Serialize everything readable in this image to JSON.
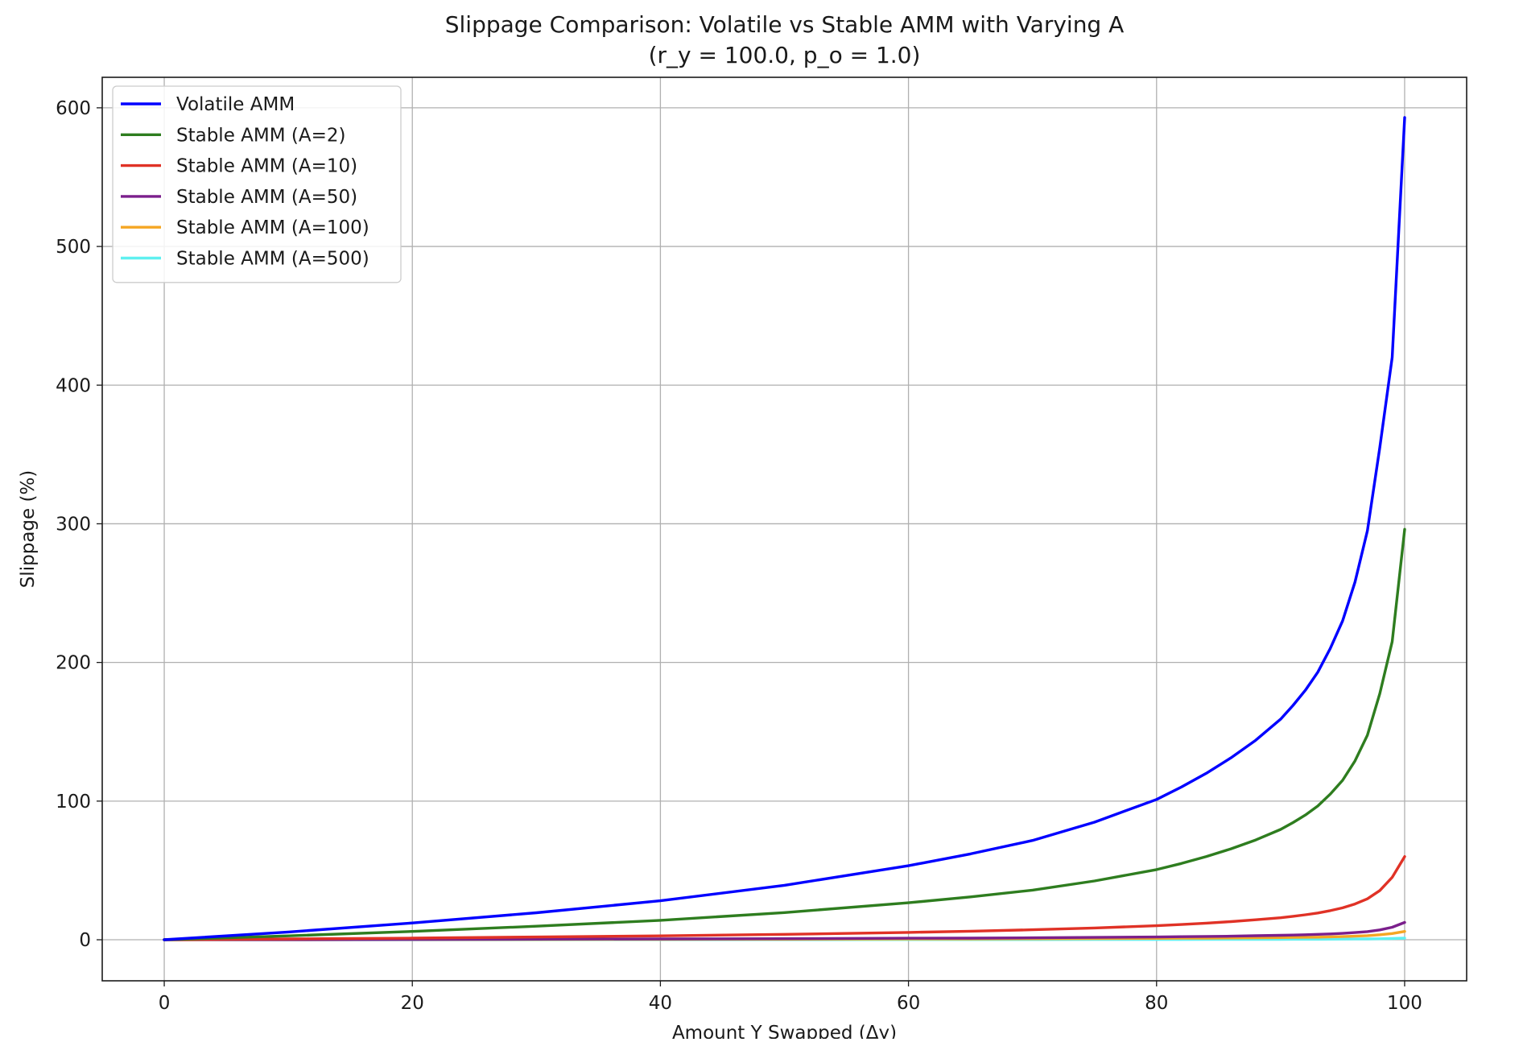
{
  "chart_data": {
    "type": "line",
    "title": "Slippage Comparison: Volatile vs Stable AMM with Varying A",
    "subtitle": "(r_y = 100.0, p_o = 1.0)",
    "xlabel": "Amount Y Swapped (Δy)",
    "ylabel": "Slippage (%)",
    "xlim": [
      -5,
      105
    ],
    "ylim": [
      -29.6,
      622
    ],
    "xticks": [
      0,
      20,
      40,
      60,
      80,
      100
    ],
    "yticks": [
      0,
      100,
      200,
      300,
      400,
      500,
      600
    ],
    "grid": true,
    "legend_position": "top-left",
    "x": [
      0,
      10,
      20,
      30,
      40,
      50,
      60,
      65,
      70,
      75,
      80,
      82,
      84,
      86,
      88,
      90,
      91,
      92,
      93,
      94,
      95,
      96,
      97,
      98,
      99,
      100
    ],
    "series": [
      {
        "name": "Volatile AMM",
        "color": "#0000ff",
        "values": [
          0,
          5.6,
          12.1,
          19.5,
          28.1,
          39.3,
          53.4,
          61.9,
          71.6,
          84.8,
          101.2,
          110.1,
          120.0,
          131.2,
          143.9,
          159.1,
          169.0,
          180.0,
          193.0,
          210.0,
          230.0,
          258.0,
          295.0,
          355.0,
          420.0,
          593.0
        ]
      },
      {
        "name": "Stable AMM (A=2)",
        "color": "#2e7d1f",
        "values": [
          0,
          2.8,
          6.0,
          9.8,
          14.0,
          19.6,
          26.7,
          30.9,
          35.8,
          42.4,
          50.6,
          55.0,
          60.0,
          65.6,
          72.0,
          79.6,
          84.5,
          90.0,
          96.5,
          105.0,
          115.0,
          129.0,
          147.5,
          177.5,
          215.0,
          296.0
        ]
      },
      {
        "name": "Stable AMM (A=10)",
        "color": "#e03226",
        "values": [
          0,
          0.6,
          1.2,
          2.0,
          2.8,
          3.9,
          5.3,
          6.2,
          7.2,
          8.5,
          10.1,
          11.0,
          12.0,
          13.1,
          14.4,
          15.9,
          16.9,
          18.0,
          19.3,
          21.0,
          23.0,
          25.8,
          29.5,
          35.5,
          45.0,
          60.0
        ]
      },
      {
        "name": "Stable AMM (A=50)",
        "color": "#7b1f8c",
        "values": [
          0,
          0.1,
          0.2,
          0.4,
          0.6,
          0.8,
          1.1,
          1.2,
          1.4,
          1.7,
          2.0,
          2.2,
          2.4,
          2.6,
          2.9,
          3.2,
          3.4,
          3.6,
          3.9,
          4.2,
          4.6,
          5.2,
          5.9,
          7.1,
          9.0,
          12.5
        ]
      },
      {
        "name": "Stable AMM (A=100)",
        "color": "#f5a623",
        "values": [
          0,
          0.06,
          0.12,
          0.2,
          0.28,
          0.39,
          0.53,
          0.62,
          0.72,
          0.85,
          1.0,
          1.1,
          1.2,
          1.3,
          1.4,
          1.6,
          1.7,
          1.8,
          1.9,
          2.1,
          2.3,
          2.6,
          3.0,
          3.6,
          4.5,
          6.0
        ]
      },
      {
        "name": "Stable AMM (A=500)",
        "color": "#5ff0f0",
        "values": [
          0,
          0.01,
          0.02,
          0.04,
          0.06,
          0.08,
          0.11,
          0.12,
          0.14,
          0.17,
          0.2,
          0.22,
          0.24,
          0.26,
          0.29,
          0.32,
          0.34,
          0.36,
          0.39,
          0.42,
          0.46,
          0.52,
          0.59,
          0.71,
          0.9,
          1.2
        ]
      }
    ]
  }
}
